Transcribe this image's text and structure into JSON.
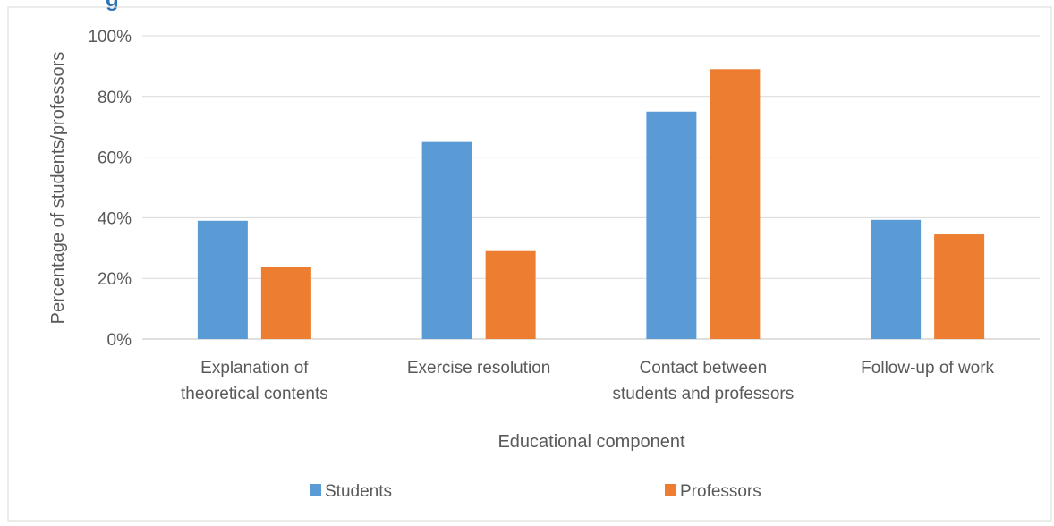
{
  "chart_data": {
    "type": "bar",
    "title_fragment": "g",
    "categories": [
      [
        "Explanation of",
        "theoretical contents"
      ],
      [
        "Exercise resolution"
      ],
      [
        "Contact between",
        "students and professors"
      ],
      [
        "Follow-up of work"
      ]
    ],
    "series": [
      {
        "name": "Students",
        "values": [
          39,
          65,
          75,
          39.3
        ],
        "color": "#5b9bd5"
      },
      {
        "name": "Professors",
        "values": [
          23.6,
          29,
          89,
          34.5
        ],
        "color": "#ed7d31"
      }
    ],
    "xlabel": "Educational component",
    "ylabel": "Percentage of students/professors",
    "ylim": [
      0,
      100
    ],
    "yticks": [
      0,
      20,
      40,
      60,
      80,
      100
    ],
    "ytick_suffix": "%",
    "grid": true,
    "legend_position": "bottom",
    "colors": {
      "frame": "#d9d9d9",
      "grid": "#d9d9d9",
      "axis": "#bfbfbf",
      "text": "#595959",
      "title": "#2e74b5"
    }
  }
}
